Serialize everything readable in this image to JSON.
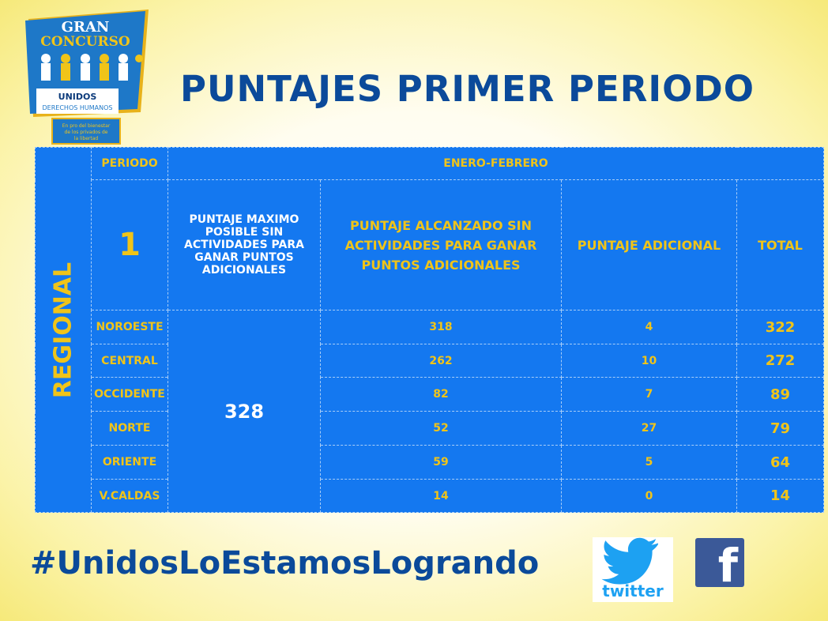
{
  "logo": {
    "line1": "GRAN",
    "line2": "CONCURSO",
    "brand": "UNIDOS POR LOS DERECHOS HUMANOS",
    "tagline": "En pro del bienestar de los privados de la libertad"
  },
  "title": "PUNTAJES PRIMER PERIODO",
  "table": {
    "side_label": "REGIONAL",
    "periodo_label": "PERIODO",
    "periodo_value": "ENERO-FEBRERO",
    "period_number": "1",
    "headers": [
      "PUNTAJE MAXIMO POSIBLE SIN ACTIVIDADES PARA GANAR PUNTOS ADICIONALES",
      "PUNTAJE ALCANZADO SIN ACTIVIDADES PARA GANAR PUNTOS ADICIONALES",
      "PUNTAJE ADICIONAL",
      "TOTAL"
    ],
    "max_score": "328",
    "rows": [
      {
        "region": "NOROESTE",
        "alcanzado": "318",
        "adicional": "4",
        "total": "322"
      },
      {
        "region": "CENTRAL",
        "alcanzado": "262",
        "adicional": "10",
        "total": "272"
      },
      {
        "region": "OCCIDENTE",
        "alcanzado": "82",
        "adicional": "7",
        "total": "89"
      },
      {
        "region": "NORTE",
        "alcanzado": "52",
        "adicional": "27",
        "total": "79"
      },
      {
        "region": "ORIENTE",
        "alcanzado": "59",
        "adicional": "5",
        "total": "64"
      },
      {
        "region": "V.CALDAS",
        "alcanzado": "14",
        "adicional": "0",
        "total": "14"
      }
    ]
  },
  "hashtag": "#UnidosLoEstamosLogrando",
  "social": {
    "twitter_label": "twitter",
    "facebook_glyph": "f"
  },
  "colors": {
    "table_bg": "#1478f0",
    "accent_yellow": "#f0c419",
    "title_blue": "#0b4a9a"
  }
}
